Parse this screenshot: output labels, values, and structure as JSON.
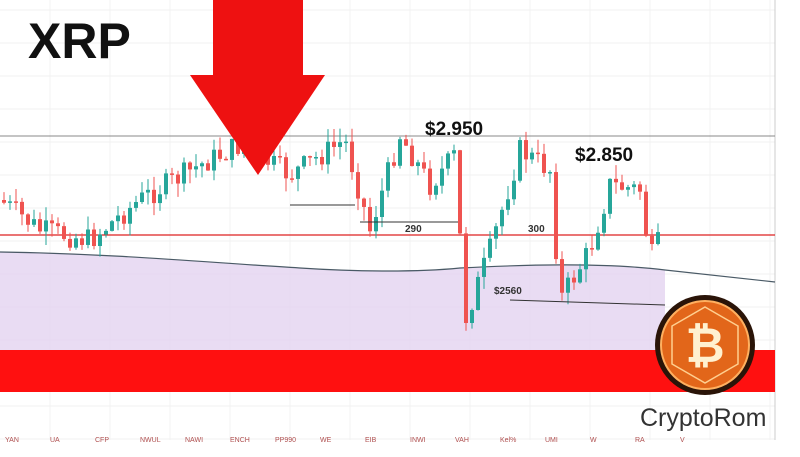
{
  "title": "XRP",
  "annotations": {
    "high": "$2.950",
    "mid": "$2.850",
    "left_level": "290",
    "right_level": "300",
    "low_level": "$2560"
  },
  "brand": "CryptoRom",
  "axis_labels": [
    "YAN",
    "UA",
    "CFP",
    "NWUL",
    "NAWI",
    "ENCH",
    "PP990",
    "WE",
    "EIB",
    "INWI",
    "VAH",
    "Kel%",
    "UMI",
    "W",
    "RA",
    "V"
  ]
}
